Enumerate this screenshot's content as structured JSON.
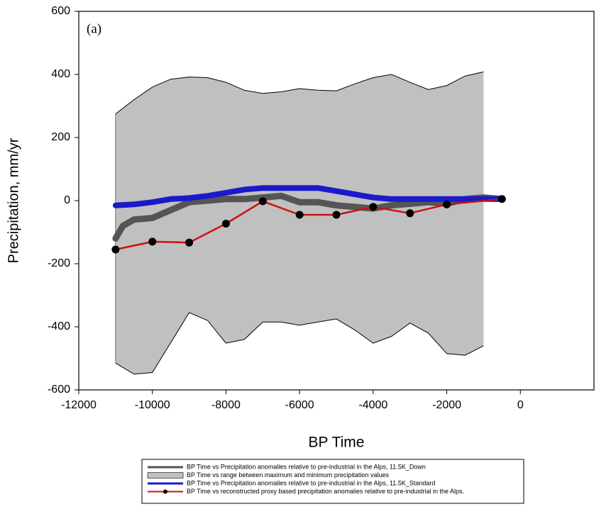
{
  "chart_data": {
    "type": "line",
    "annotation": "(a)",
    "x_label": "BP Time",
    "y_label": "Precipitation, mm/yr",
    "xlim": [
      -12000,
      2000
    ],
    "xticks": [
      -12000,
      -10000,
      -8000,
      -6000,
      -4000,
      -2000,
      0
    ],
    "ylim": [
      -600,
      600
    ],
    "yticks": [
      -600,
      -400,
      -200,
      0,
      200,
      400,
      600
    ],
    "series": [
      {
        "name": "BP Time vs Precipitation anomalies relative to pre-industrial in the Alps, 11.5K_Down",
        "style": "line",
        "color": "#555555",
        "x": [
          -11000,
          -10800,
          -10500,
          -10000,
          -9500,
          -9000,
          -8500,
          -8000,
          -7500,
          -7000,
          -6500,
          -6000,
          -5500,
          -5000,
          -4500,
          -4000,
          -3500,
          -3000,
          -2500,
          -2000,
          -1500,
          -1000,
          -500
        ],
        "values": [
          -120,
          -80,
          -60,
          -55,
          -30,
          -5,
          0,
          5,
          5,
          10,
          15,
          -5,
          -5,
          -15,
          -20,
          -25,
          -15,
          -10,
          -5,
          -10,
          5,
          10,
          5
        ]
      },
      {
        "name": "BP Time vs range between maximum and minimum precipitation values",
        "style": "band",
        "color": "#c0c0c0",
        "x": [
          -11000,
          -10500,
          -10000,
          -9500,
          -9000,
          -8500,
          -8000,
          -7500,
          -7000,
          -6500,
          -6000,
          -5500,
          -5000,
          -4500,
          -4000,
          -3500,
          -3000,
          -2500,
          -2000,
          -1500,
          -1000
        ],
        "values": [
          275,
          320,
          360,
          385,
          392,
          390,
          375,
          350,
          340,
          345,
          355,
          350,
          348,
          370,
          390,
          400,
          375,
          352,
          365,
          395,
          408
        ],
        "lower": [
          -515,
          -550,
          -545,
          -450,
          -355,
          -380,
          -452,
          -440,
          -385,
          -385,
          -395,
          -385,
          -375,
          -410,
          -452,
          -430,
          -388,
          -420,
          -485,
          -490,
          -460
        ]
      },
      {
        "name": "BP Time vs Precipitation anomalies relative to pre-industrial in the Alps, 11.5K_Standard",
        "style": "line",
        "color": "#1a1acc",
        "x": [
          -11000,
          -10500,
          -10000,
          -9500,
          -9000,
          -8500,
          -8000,
          -7500,
          -7000,
          -6500,
          -6000,
          -5500,
          -5000,
          -4500,
          -4000,
          -3500,
          -3000,
          -2500,
          -2000,
          -1500,
          -1000,
          -500
        ],
        "values": [
          -15,
          -12,
          -5,
          5,
          8,
          15,
          25,
          35,
          40,
          40,
          40,
          40,
          30,
          20,
          10,
          5,
          5,
          5,
          5,
          5,
          5,
          5
        ]
      },
      {
        "name": "BP Time vs reconstructed proxy based precipitation anomalies relative to pre-industrial in the Alps.",
        "style": "line-points",
        "color": "#cc1111",
        "x": [
          -11000,
          -10000,
          -9000,
          -8000,
          -7000,
          -6000,
          -5000,
          -4000,
          -3000,
          -2000,
          -500
        ],
        "values": [
          -155,
          -130,
          -133,
          -73,
          -2,
          -45,
          -45,
          -20,
          -40,
          -12,
          5
        ]
      }
    ]
  }
}
